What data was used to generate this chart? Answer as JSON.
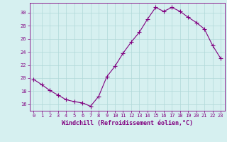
{
  "x": [
    0,
    1,
    2,
    3,
    4,
    5,
    6,
    7,
    8,
    9,
    10,
    11,
    12,
    13,
    14,
    15,
    16,
    17,
    18,
    19,
    20,
    21,
    22,
    23
  ],
  "y": [
    19.8,
    19.0,
    18.1,
    17.4,
    16.7,
    16.4,
    16.2,
    15.7,
    17.2,
    20.2,
    21.8,
    23.8,
    25.5,
    27.0,
    29.0,
    30.8,
    30.2,
    30.8,
    30.2,
    29.3,
    28.5,
    27.5,
    25.0,
    23.0
  ],
  "line_color": "#800080",
  "marker": "+",
  "markersize": 4,
  "linewidth": 0.8,
  "bg_color": "#d6f0f0",
  "grid_color": "#b0d8d8",
  "title": "",
  "xlabel": "Windchill (Refroidissement éolien,°C)",
  "ylabel": "",
  "xlim": [
    -0.5,
    23.5
  ],
  "ylim": [
    15.0,
    31.5
  ],
  "yticks": [
    16,
    18,
    20,
    22,
    24,
    26,
    28,
    30
  ],
  "xticks": [
    0,
    1,
    2,
    3,
    4,
    5,
    6,
    7,
    8,
    9,
    10,
    11,
    12,
    13,
    14,
    15,
    16,
    17,
    18,
    19,
    20,
    21,
    22,
    23
  ],
  "tick_color": "#800080",
  "tick_fontsize": 5.0,
  "xlabel_fontsize": 6.0,
  "xlabel_color": "#800080",
  "spine_color": "#800080"
}
